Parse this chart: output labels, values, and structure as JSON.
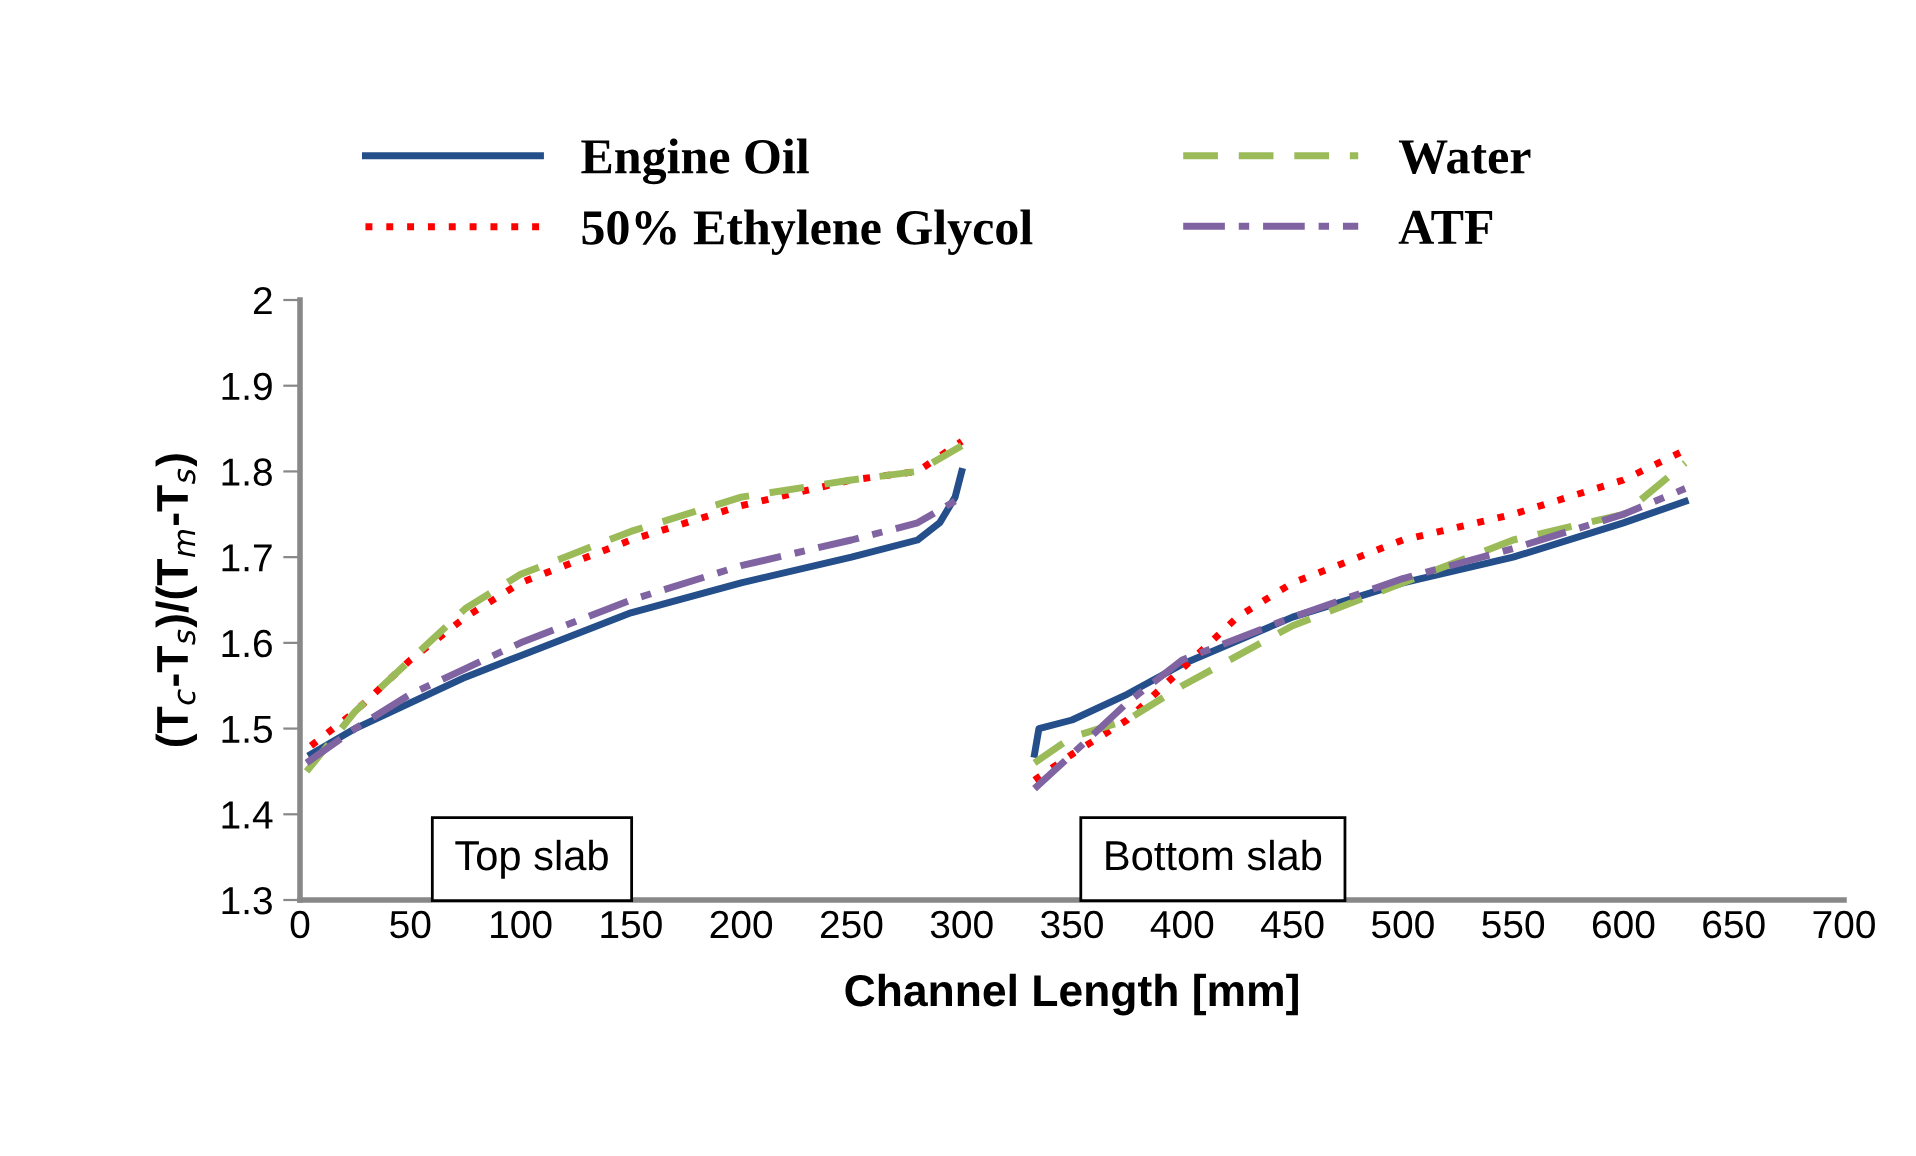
{
  "chart_data": {
    "type": "line",
    "xlabel": "Channel Length [mm]",
    "ylabel": "(T$_{c}$-T$_{s}$)/(T$_{m}$-T$_{s}$)",
    "xlim": [
      0,
      700
    ],
    "xticks": [
      0,
      50,
      100,
      150,
      200,
      250,
      300,
      350,
      400,
      450,
      500,
      550,
      600,
      650,
      700
    ],
    "ylim": [
      1.3,
      2
    ],
    "yticks": [
      1.3,
      1.4,
      1.5,
      1.6,
      1.7,
      1.8,
      1.9,
      2
    ],
    "grid": false,
    "legend": "top",
    "marker": "none",
    "annotations": [
      "Top slab",
      "Bottom slab"
    ],
    "series": [
      {
        "name": "Engine Oil",
        "color": "#254f8a",
        "line_style": "solid",
        "x": [
          5,
          25,
          50,
          75,
          100,
          150,
          200,
          250,
          280,
          290,
          297,
          300,
          316,
          333,
          335,
          350,
          375,
          400,
          450,
          500,
          550,
          600,
          628
        ],
        "values": [
          1.47,
          1.5,
          1.53,
          1.56,
          1.585,
          1.635,
          1.67,
          1.7,
          1.72,
          1.74,
          1.77,
          1.8,
          null,
          1.47,
          1.5,
          1.51,
          1.54,
          1.575,
          1.63,
          1.67,
          1.7,
          1.74,
          1.765
        ]
      },
      {
        "name": "50% Ethylene Glycol",
        "color": "#ff0000",
        "line_style": "dotted",
        "x": [
          5,
          25,
          50,
          75,
          100,
          150,
          200,
          250,
          280,
          300,
          316,
          333,
          350,
          375,
          400,
          425,
          450,
          500,
          550,
          600,
          628
        ],
        "values": [
          1.48,
          1.52,
          1.58,
          1.63,
          1.67,
          1.72,
          1.76,
          1.79,
          1.8,
          1.835,
          null,
          1.44,
          1.47,
          1.51,
          1.57,
          1.63,
          1.67,
          1.72,
          1.75,
          1.79,
          1.825
        ]
      },
      {
        "name": "Water",
        "color": "#9bbb59",
        "line_style": "dashed",
        "x": [
          3,
          25,
          50,
          75,
          100,
          150,
          200,
          250,
          280,
          300,
          316,
          333,
          350,
          375,
          400,
          450,
          500,
          550,
          600,
          628
        ],
        "values": [
          1.45,
          1.52,
          1.58,
          1.64,
          1.68,
          1.73,
          1.77,
          1.79,
          1.8,
          1.83,
          null,
          1.46,
          1.49,
          1.51,
          1.55,
          1.62,
          1.67,
          1.72,
          1.75,
          1.81
        ]
      },
      {
        "name": "ATF",
        "color": "#8064a2",
        "line_style": "dashdot",
        "x": [
          3,
          25,
          50,
          75,
          100,
          150,
          200,
          250,
          280,
          300,
          316,
          333,
          350,
          375,
          400,
          450,
          500,
          550,
          600,
          628
        ],
        "values": [
          1.46,
          1.5,
          1.54,
          1.57,
          1.6,
          1.65,
          1.69,
          1.72,
          1.74,
          1.77,
          null,
          1.43,
          1.47,
          1.53,
          1.58,
          1.63,
          1.675,
          1.71,
          1.75,
          1.78
        ]
      }
    ]
  }
}
